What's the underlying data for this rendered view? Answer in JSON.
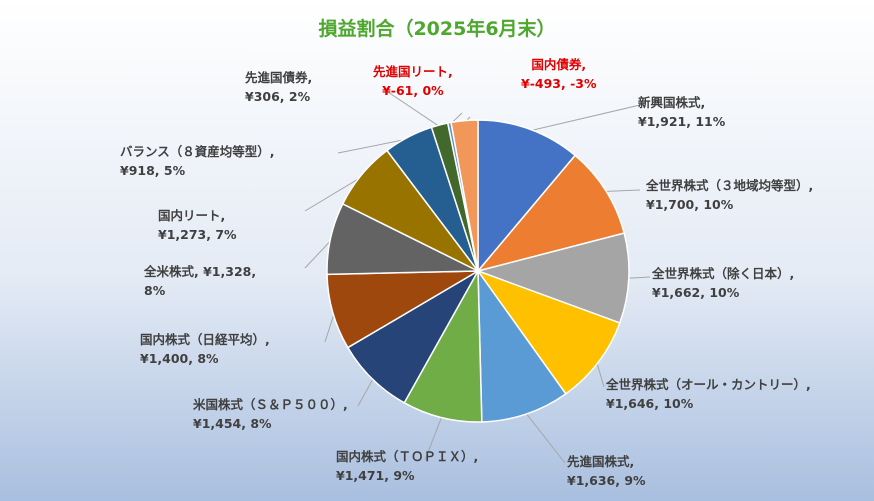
{
  "chart_data": {
    "type": "pie",
    "title": "損益割合（2025年6月末）",
    "slices": [
      {
        "name": "新興国株式",
        "label_line1": "新興国株式,",
        "label_line2": "¥1,921, 11%",
        "value": 1921,
        "percent": 11,
        "color": "#4472c4"
      },
      {
        "name": "全世界株式（３地域均等型）",
        "label_line1": "全世界株式（３地域均等型）,",
        "label_line2": "¥1,700, 10%",
        "value": 1700,
        "percent": 10,
        "color": "#ed7d31"
      },
      {
        "name": "全世界株式（除く日本）",
        "label_line1": "全世界株式（除く日本）,",
        "label_line2": "¥1,662, 10%",
        "value": 1662,
        "percent": 10,
        "color": "#a5a5a5"
      },
      {
        "name": "全世界株式（オール・カントリー）",
        "label_line1": "全世界株式（オール・カントリー）,",
        "label_line2": "¥1,646, 10%",
        "value": 1646,
        "percent": 10,
        "color": "#ffc000"
      },
      {
        "name": "先進国株式",
        "label_line1": "先進国株式,",
        "label_line2": "¥1,636, 9%",
        "value": 1636,
        "percent": 9,
        "color": "#5b9bd5"
      },
      {
        "name": "国内株式（ＴＯＰＩＸ）",
        "label_line1": "国内株式（ＴＯＰＩＸ）,",
        "label_line2": "¥1,471, 9%",
        "value": 1471,
        "percent": 9,
        "color": "#70ad47"
      },
      {
        "name": "米国株式（Ｓ＆Ｐ５００）",
        "label_line1": "米国株式（Ｓ＆Ｐ５００）,",
        "label_line2": "¥1,454, 8%",
        "value": 1454,
        "percent": 8,
        "color": "#264478"
      },
      {
        "name": "国内株式（日経平均）",
        "label_line1": "国内株式（日経平均）,",
        "label_line2": "¥1,400, 8%",
        "value": 1400,
        "percent": 8,
        "color": "#9e480e"
      },
      {
        "name": "全米株式",
        "label_line1": "全米株式, ¥1,328,",
        "label_line2": "8%",
        "value": 1328,
        "percent": 8,
        "color": "#636363"
      },
      {
        "name": "国内リート",
        "label_line1": "国内リート,",
        "label_line2": "¥1,273, 7%",
        "value": 1273,
        "percent": 7,
        "color": "#997300"
      },
      {
        "name": "バランス（８資産均等型）",
        "label_line1": "バランス（８資産均等型）,",
        "label_line2": "¥918, 5%",
        "value": 918,
        "percent": 5,
        "color": "#255e91"
      },
      {
        "name": "先進国債券",
        "label_line1": "先進国債券,",
        "label_line2": "¥306, 2%",
        "value": 306,
        "percent": 2,
        "color": "#43682b"
      },
      {
        "name": "先進国リート",
        "label_line1": "先進国リート,",
        "label_line2": "¥-61, 0%",
        "value": -61,
        "percent": 0,
        "color": "#698ed0"
      },
      {
        "name": "国内債券",
        "label_line1": "国内債券,",
        "label_line2": "¥-493, -3%",
        "value": -493,
        "percent": -3,
        "color": "#f1975a"
      }
    ],
    "legend": "none"
  }
}
